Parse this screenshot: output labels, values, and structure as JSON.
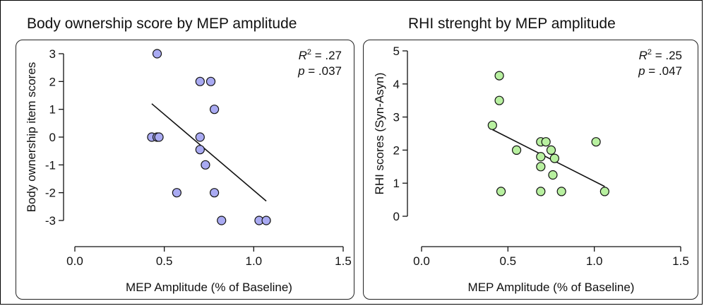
{
  "chart_data": [
    {
      "type": "scatter",
      "title": "Body ownership score by MEP amplitude",
      "xlabel": "MEP Amplitude (% of Baseline)",
      "ylabel": "Body ownership item scores",
      "xlim": [
        0.0,
        1.5
      ],
      "ylim": [
        -3,
        3
      ],
      "x_ticks": [
        "0.0",
        "0.5",
        "1.0",
        "1.5"
      ],
      "y_ticks": [
        "3",
        "2",
        "1",
        "0",
        "-1",
        "-2",
        "-3"
      ],
      "point_color": "#a9aaf2",
      "points": [
        {
          "x": 0.46,
          "y": 3
        },
        {
          "x": 0.7,
          "y": 2
        },
        {
          "x": 0.76,
          "y": 2
        },
        {
          "x": 0.78,
          "y": 1
        },
        {
          "x": 0.43,
          "y": 0
        },
        {
          "x": 0.46,
          "y": 0
        },
        {
          "x": 0.47,
          "y": 0
        },
        {
          "x": 0.7,
          "y": 0
        },
        {
          "x": 0.7,
          "y": -0.45
        },
        {
          "x": 0.73,
          "y": -1
        },
        {
          "x": 0.57,
          "y": -2
        },
        {
          "x": 0.78,
          "y": -2
        },
        {
          "x": 0.82,
          "y": -3
        },
        {
          "x": 1.03,
          "y": -3
        },
        {
          "x": 1.07,
          "y": -3
        }
      ],
      "regression": {
        "x1": 0.43,
        "y1": 1.2,
        "x2": 1.07,
        "y2": -2.3
      },
      "stat_r2": "= .27",
      "stat_p": "= .037"
    },
    {
      "type": "scatter",
      "title": "RHI strenght by MEP amplitude",
      "xlabel": "MEP Amplitude (% of Baseline)",
      "ylabel": "RHI scores (Syn-Asyn)",
      "xlim": [
        0.0,
        1.5
      ],
      "ylim": [
        0,
        5
      ],
      "x_ticks": [
        "0.0",
        "0.5",
        "1.0",
        "1.5"
      ],
      "y_ticks": [
        "5",
        "4",
        "3",
        "2",
        "1",
        "0"
      ],
      "point_color": "#b8f0a0",
      "points": [
        {
          "x": 0.45,
          "y": 4.25
        },
        {
          "x": 0.45,
          "y": 3.5
        },
        {
          "x": 0.41,
          "y": 2.75
        },
        {
          "x": 0.55,
          "y": 2.0
        },
        {
          "x": 0.69,
          "y": 2.25
        },
        {
          "x": 0.72,
          "y": 2.25
        },
        {
          "x": 0.69,
          "y": 1.8
        },
        {
          "x": 0.75,
          "y": 2.0
        },
        {
          "x": 0.77,
          "y": 1.75
        },
        {
          "x": 0.69,
          "y": 1.5
        },
        {
          "x": 0.76,
          "y": 1.25
        },
        {
          "x": 1.01,
          "y": 2.25
        },
        {
          "x": 0.46,
          "y": 0.75
        },
        {
          "x": 0.69,
          "y": 0.75
        },
        {
          "x": 0.81,
          "y": 0.75
        },
        {
          "x": 1.06,
          "y": 0.75
        }
      ],
      "regression": {
        "x1": 0.41,
        "y1": 2.62,
        "x2": 1.06,
        "y2": 0.9
      },
      "stat_r2": "= .25",
      "stat_p": "= .047"
    }
  ],
  "stat_labels": {
    "r": "R",
    "sq": "2",
    "p": "p"
  }
}
